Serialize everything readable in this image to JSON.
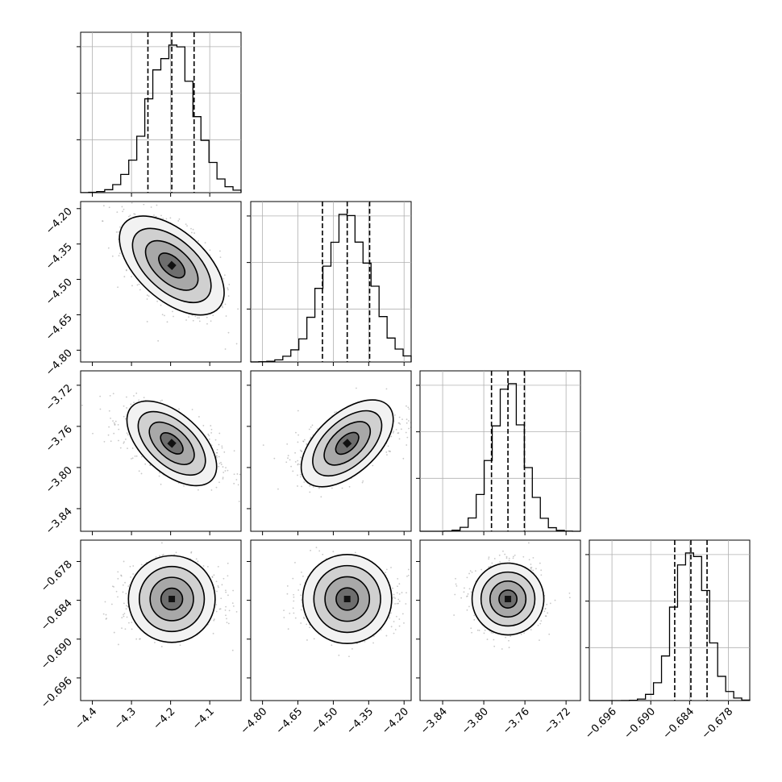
{
  "chart_data": {
    "type": "corner",
    "parameters": [
      {
        "range": [
          -4.43,
          -4.02
        ],
        "ticks": [
          -4.4,
          -4.3,
          -4.2,
          -4.1
        ],
        "tick_labels": [
          "−4.4",
          "−4.3",
          "−4.2",
          "−4.1"
        ],
        "quantiles": [
          -4.258,
          -4.197,
          -4.14
        ],
        "median": -4.197,
        "std": 0.058
      },
      {
        "range": [
          -4.85,
          -4.17
        ],
        "ticks": [
          -4.8,
          -4.65,
          -4.5,
          -4.35,
          -4.2
        ],
        "tick_labels": [
          "−4.80",
          "−4.65",
          "−4.50",
          "−4.35",
          "−4.20"
        ],
        "quantiles": [
          -4.546,
          -4.441,
          -4.346
        ],
        "median": -4.441,
        "std": 0.1
      },
      {
        "range": [
          -3.862,
          -3.706
        ],
        "ticks": [
          -3.84,
          -3.8,
          -3.76,
          -3.72
        ],
        "tick_labels": [
          "−3.84",
          "−3.80",
          "−3.76",
          "−3.72"
        ],
        "quantiles": [
          -3.7925,
          -3.7765,
          -3.7605
        ],
        "median": -3.7765,
        "std": 0.016
      },
      {
        "range": [
          -0.6995,
          -0.6747
        ],
        "ticks": [
          -0.696,
          -0.69,
          -0.684,
          -0.678
        ],
        "tick_labels": [
          "−0.696",
          "−0.690",
          "−0.684",
          "−0.678"
        ],
        "quantiles": [
          -0.6863,
          -0.6838,
          -0.6813
        ],
        "median": -0.6838,
        "std": 0.0025
      }
    ],
    "correlations": {
      "1-0": -0.55,
      "2-0": -0.55,
      "2-1": 0.55,
      "3-0": 0.0,
      "3-1": 0.0,
      "3-2": 0.0
    },
    "histogram_bins": 20,
    "contour_levels": [
      0.5,
      1.0,
      1.5,
      2.0
    ],
    "grid": true,
    "dashed_quantile_lines": true
  }
}
